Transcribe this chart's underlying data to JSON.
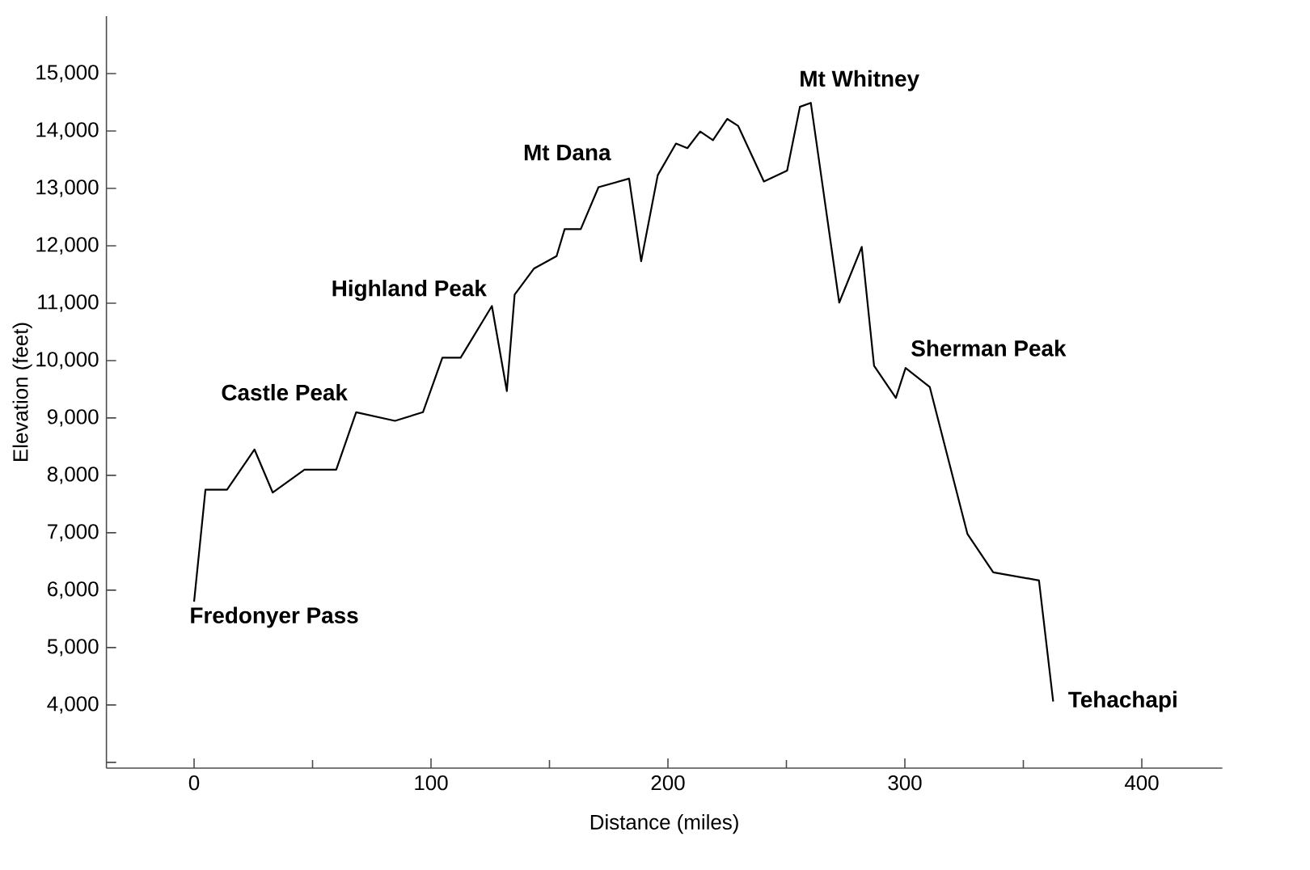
{
  "chart_data": {
    "type": "line",
    "xlabel": "Distance (miles)",
    "ylabel": "Elevation (feet)",
    "xlim": [
      -37,
      434
    ],
    "ylim": [
      2900,
      16000
    ],
    "xticks": [
      0,
      100,
      200,
      300,
      400
    ],
    "yticks": [
      {
        "value": 3000,
        "label": null
      },
      {
        "value": 4000,
        "label": "4,000"
      },
      {
        "value": 5000,
        "label": "5,000"
      },
      {
        "value": 6000,
        "label": "6,000"
      },
      {
        "value": 7000,
        "label": "7,000"
      },
      {
        "value": 8000,
        "label": "8,000"
      },
      {
        "value": 9000,
        "label": "9,000"
      },
      {
        "value": 10000,
        "label": "10,000"
      },
      {
        "value": 11000,
        "label": "11,000"
      },
      {
        "value": 12000,
        "label": "12,000"
      },
      {
        "value": 13000,
        "label": "13,000"
      },
      {
        "value": 14000,
        "label": "14,000"
      },
      {
        "value": 15000,
        "label": "15,000"
      }
    ],
    "grid": false,
    "marker": "none",
    "line_style": "solid",
    "series": [
      {
        "color": "#000000",
        "x": [
          0,
          4.8,
          13.9,
          25.5,
          33.2,
          46.6,
          60,
          68.4,
          84.8,
          96.6,
          104.8,
          112.5,
          125.7,
          132,
          135.3,
          143.4,
          153,
          156.4,
          163.2,
          170.7,
          183.6,
          188.7,
          195.7,
          203.4,
          208.2,
          213.6,
          219,
          225,
          229.6,
          240.5,
          250.3,
          255.7,
          260.3,
          272.3,
          281.8,
          287,
          296.2,
          300.3,
          310.5,
          326.4,
          337.3,
          356.6,
          362.6
        ],
        "values": [
          5800,
          7750,
          7750,
          8450,
          7700,
          8100,
          8100,
          9100,
          8950,
          9100,
          10050,
          10050,
          10950,
          9470,
          11150,
          11600,
          11820,
          12290,
          12290,
          13020,
          13170,
          11730,
          13230,
          13780,
          13700,
          13990,
          13840,
          14210,
          14090,
          13120,
          13310,
          14420,
          14490,
          11010,
          11980,
          9910,
          9350,
          9870,
          9540,
          6980,
          6310,
          6170,
          4060
        ]
      }
    ],
    "annotations": [
      {
        "text": "Fredonyer Pass",
        "x": 0,
        "y": 5800
      },
      {
        "text": "Castle Peak",
        "x": 68.4,
        "y": 9100
      },
      {
        "text": "Highland Peak",
        "x": 125.7,
        "y": 10950
      },
      {
        "text": "Mt Dana",
        "x": 183.6,
        "y": 13170
      },
      {
        "text": "Mt Whitney",
        "x": 260.3,
        "y": 14490
      },
      {
        "text": "Sherman Peak",
        "x": 300.3,
        "y": 9870
      },
      {
        "text": "Tehachapi",
        "x": 362.6,
        "y": 4060
      }
    ]
  }
}
